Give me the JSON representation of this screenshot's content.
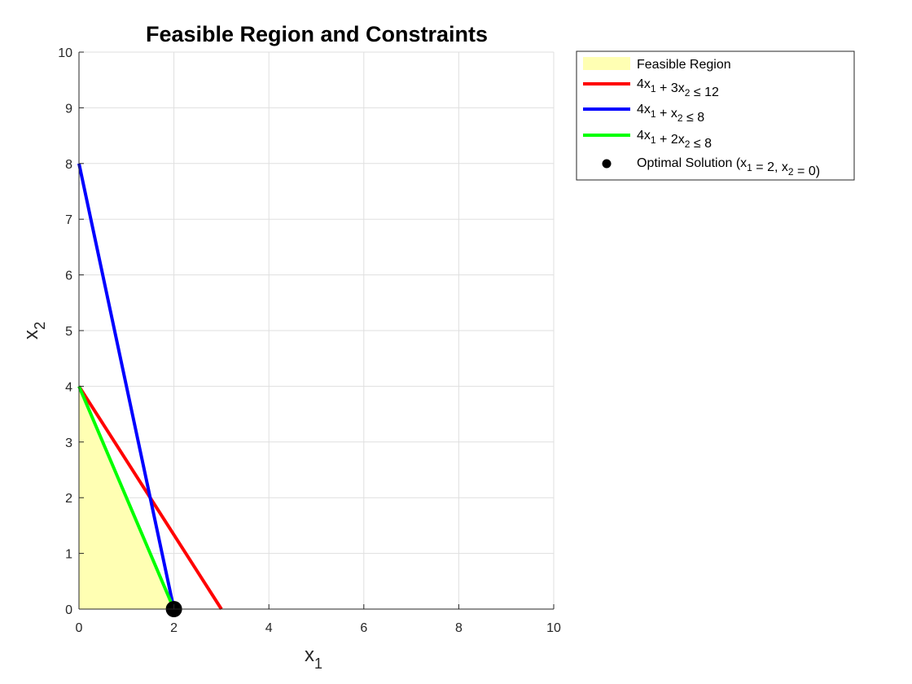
{
  "chart_data": {
    "type": "line",
    "title": "Feasible Region and Constraints",
    "xlabel": {
      "base": "x",
      "sub": "1"
    },
    "ylabel": {
      "base": "x",
      "sub": "2"
    },
    "xlim": [
      0,
      10
    ],
    "ylim": [
      0,
      10
    ],
    "xticks": [
      0,
      2,
      4,
      6,
      8,
      10
    ],
    "yticks": [
      0,
      1,
      2,
      3,
      4,
      5,
      6,
      7,
      8,
      9,
      10
    ],
    "grid": true,
    "legend_position": "outside-top-right",
    "feasible_region": {
      "name": "Feasible Region",
      "color": "#ffffb3",
      "points": [
        [
          0,
          0
        ],
        [
          2,
          0
        ],
        [
          0,
          4
        ]
      ]
    },
    "series": [
      {
        "label_parts": [
          [
            "4x",
            ""
          ],
          [
            "1",
            "sub"
          ],
          [
            " + 3x",
            ""
          ],
          [
            "2",
            "sub"
          ],
          [
            " ≤ 12",
            ""
          ]
        ],
        "color": "#ff0000",
        "x": [
          0,
          3
        ],
        "y": [
          4,
          0
        ]
      },
      {
        "label_parts": [
          [
            "4x",
            ""
          ],
          [
            "1",
            "sub"
          ],
          [
            " + x",
            ""
          ],
          [
            "2",
            "sub"
          ],
          [
            " ≤ 8",
            ""
          ]
        ],
        "color": "#0000ff",
        "x": [
          0,
          2
        ],
        "y": [
          8,
          0
        ]
      },
      {
        "label_parts": [
          [
            "4x",
            ""
          ],
          [
            "1",
            "sub"
          ],
          [
            " + 2x",
            ""
          ],
          [
            "2",
            "sub"
          ],
          [
            " ≤ 8",
            ""
          ]
        ],
        "color": "#00ff00",
        "x": [
          0,
          2
        ],
        "y": [
          4,
          0
        ]
      }
    ],
    "optimal_point": {
      "label_parts": [
        [
          "Optimal Solution (x",
          ""
        ],
        [
          "1",
          "sub"
        ],
        [
          " = 2, x",
          ""
        ],
        [
          "2",
          "sub"
        ],
        [
          " = 0)",
          ""
        ]
      ],
      "color": "#000000",
      "x": 2,
      "y": 0
    }
  }
}
